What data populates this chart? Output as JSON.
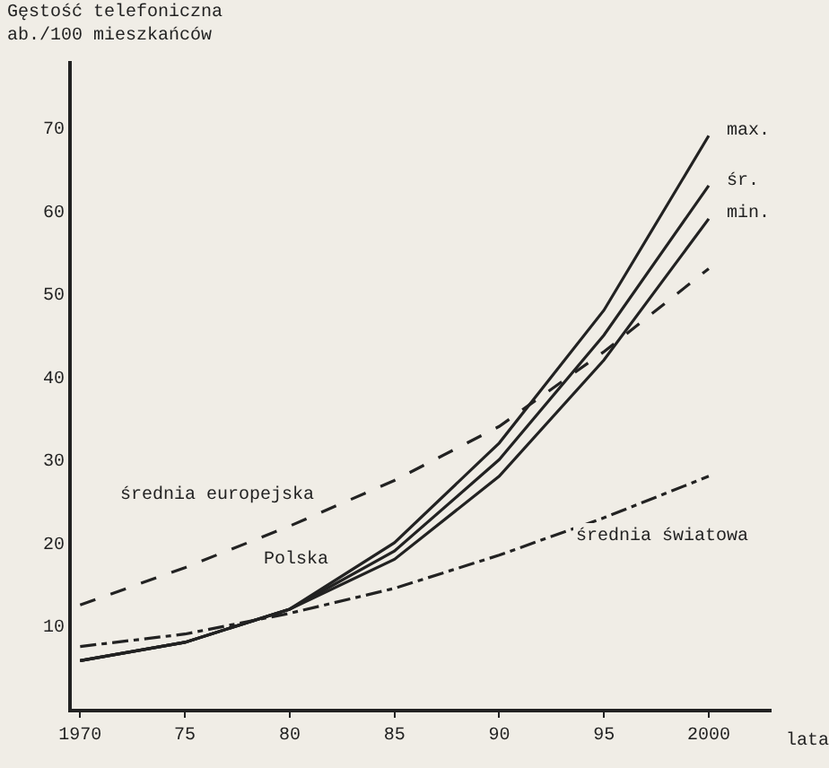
{
  "chart_data": {
    "type": "line",
    "ylabel": "Gęstość telefoniczna\nab./100 mieszkańców",
    "xlabel": "lata",
    "x": [
      1970,
      1975,
      1980,
      1985,
      1990,
      1995,
      2000
    ],
    "series": [
      {
        "color": "#222222",
        "line_style": "solid",
        "values": [
          5.8,
          8,
          12,
          20,
          32,
          48,
          69
        ]
      },
      {
        "color": "#222222",
        "line_style": "solid",
        "values": [
          5.8,
          8,
          12,
          19,
          30,
          45,
          63
        ]
      },
      {
        "color": "#222222",
        "line_style": "solid",
        "values": [
          5.8,
          8,
          12,
          18,
          28,
          42,
          59
        ]
      },
      {
        "color": "#222222",
        "line_style": "dashed",
        "values": [
          12.5,
          17,
          22,
          27.5,
          34,
          43,
          53
        ]
      },
      {
        "color": "#222222",
        "line_style": "dashdot",
        "values": [
          7.5,
          9,
          11.5,
          14.5,
          18.5,
          23,
          28
        ]
      }
    ],
    "xlim": [
      1969.6,
      2003
    ],
    "ylim": [
      0,
      78
    ],
    "xticks": [
      {
        "value": 1970,
        "label": "1970"
      },
      {
        "value": 1975,
        "label": "75"
      },
      {
        "value": 1980,
        "label": "80"
      },
      {
        "value": 1985,
        "label": "85"
      },
      {
        "value": 1990,
        "label": "90"
      },
      {
        "value": 1995,
        "label": "95"
      },
      {
        "value": 2000,
        "label": "2000"
      }
    ],
    "yticks": [
      10,
      20,
      30,
      40,
      50,
      60,
      70
    ],
    "grid": false,
    "marker": "none",
    "annotations": [
      "max.",
      "śr.",
      "min.",
      "Polska",
      "średnia europejska",
      "średnia światowa"
    ]
  }
}
